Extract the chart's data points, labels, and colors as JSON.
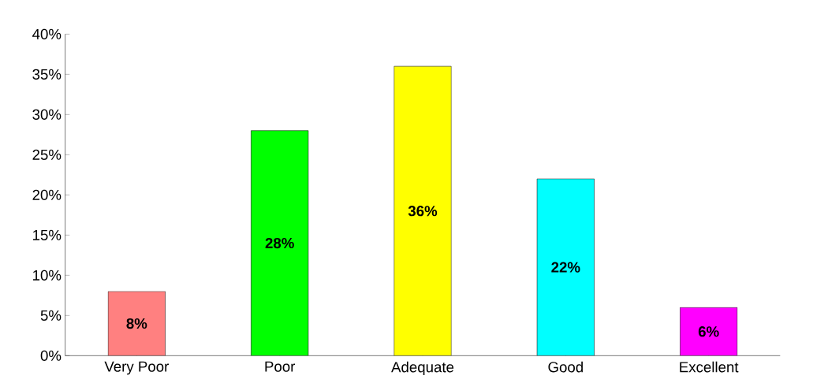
{
  "chart_data": {
    "type": "bar",
    "categories": [
      "Very Poor",
      "Poor",
      "Adequate",
      "Good",
      "Excellent"
    ],
    "values": [
      8,
      28,
      36,
      22,
      6
    ],
    "colors": [
      "#ff8080",
      "#00ff00",
      "#ffff00",
      "#00ffff",
      "#ff00ff"
    ],
    "value_labels": [
      "8%",
      "28%",
      "36%",
      "22%",
      "6%"
    ],
    "yticks": [
      {
        "value": 0,
        "label": "0%"
      },
      {
        "value": 5,
        "label": "5%"
      },
      {
        "value": 10,
        "label": "10%"
      },
      {
        "value": 15,
        "label": "15%"
      },
      {
        "value": 20,
        "label": "20%"
      },
      {
        "value": 25,
        "label": "25%"
      },
      {
        "value": 30,
        "label": "30%"
      },
      {
        "value": 35,
        "label": "35%"
      },
      {
        "value": 40,
        "label": "40%"
      }
    ],
    "ylim": [
      0,
      40
    ]
  }
}
